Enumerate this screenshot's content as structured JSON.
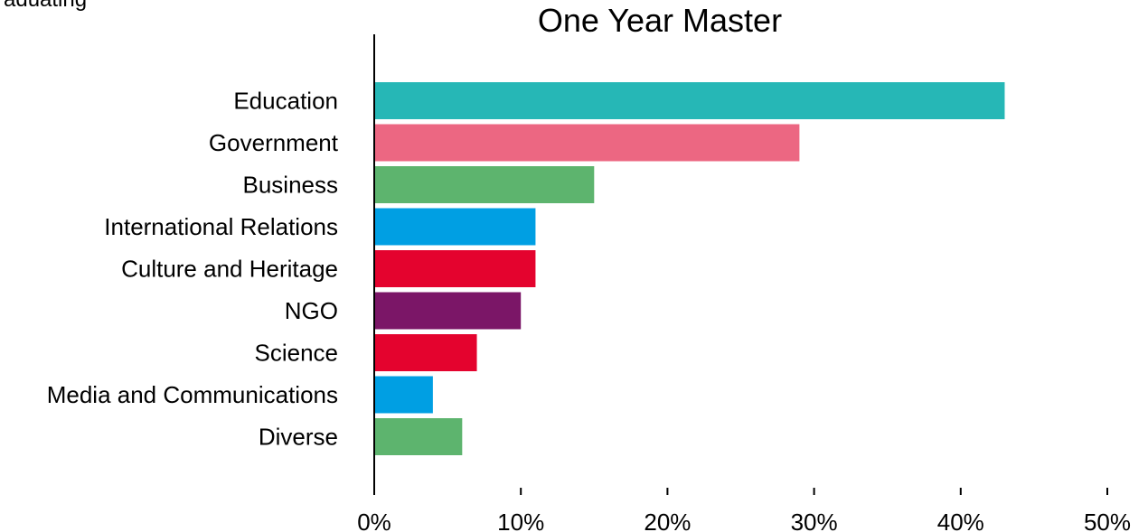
{
  "cropped_text": "raduating",
  "chart_data": {
    "type": "bar",
    "orientation": "horizontal",
    "title": "One Year Master",
    "xlabel": "",
    "ylabel": "",
    "categories": [
      "Education",
      "Government",
      "Business",
      "International Relations",
      "Culture and Heritage",
      "NGO",
      "Science",
      "Media and Communications",
      "Diverse"
    ],
    "values": [
      43,
      29,
      15,
      11,
      11,
      10,
      7,
      4,
      6
    ],
    "colors": [
      "#26b7b6",
      "#ec6782",
      "#5db46e",
      "#009fe3",
      "#e4032e",
      "#7b1667",
      "#e4032e",
      "#009fe3",
      "#5db46e"
    ],
    "xlim": [
      0,
      50
    ],
    "xticks": [
      0,
      10,
      20,
      30,
      40,
      50
    ],
    "xtick_labels": [
      "0%",
      "10%",
      "20%",
      "30%",
      "40%",
      "50%"
    ],
    "grid": false,
    "legend": "none"
  }
}
